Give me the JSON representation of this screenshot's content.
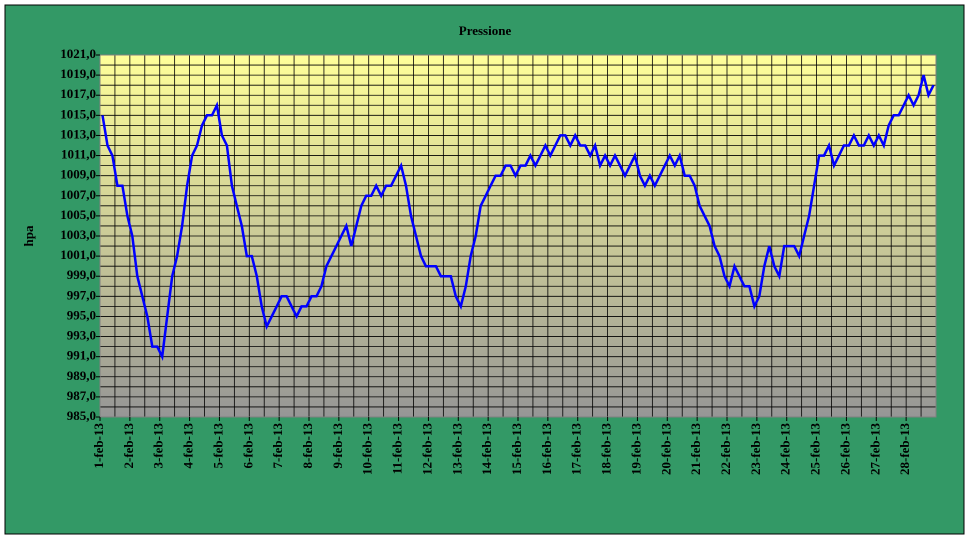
{
  "chart_data": {
    "type": "line",
    "title": "Pressione",
    "y_label": "hpa",
    "categories": [
      "1-feb-13",
      null,
      null,
      null,
      null,
      null,
      "2-feb-13",
      null,
      null,
      null,
      null,
      null,
      "3-feb-13",
      null,
      null,
      null,
      null,
      null,
      "4-feb-13",
      null,
      null,
      null,
      null,
      null,
      "5-feb-13",
      null,
      null,
      null,
      null,
      null,
      "6-feb-13",
      null,
      null,
      null,
      null,
      null,
      "7-feb-13",
      null,
      null,
      null,
      null,
      null,
      "8-feb-13",
      null,
      null,
      null,
      null,
      null,
      "9-feb-13",
      null,
      null,
      null,
      null,
      null,
      "10-feb-13",
      null,
      null,
      null,
      null,
      null,
      "11-feb-13",
      null,
      null,
      null,
      null,
      null,
      "12-feb-13",
      null,
      null,
      null,
      null,
      null,
      "13-feb-13",
      null,
      null,
      null,
      null,
      null,
      "14-feb-13",
      null,
      null,
      null,
      null,
      null,
      "15-feb-13",
      null,
      null,
      null,
      null,
      null,
      "16-feb-13",
      null,
      null,
      null,
      null,
      null,
      "17-feb-13",
      null,
      null,
      null,
      null,
      null,
      "18-feb-13",
      null,
      null,
      null,
      null,
      null,
      "19-feb-13",
      null,
      null,
      null,
      null,
      null,
      "20-feb-13",
      null,
      null,
      null,
      null,
      null,
      "21-feb-13",
      null,
      null,
      null,
      null,
      null,
      "22-feb-13",
      null,
      null,
      null,
      null,
      null,
      "23-feb-13",
      null,
      null,
      null,
      null,
      null,
      "24-feb-13",
      null,
      null,
      null,
      null,
      null,
      "25-feb-13",
      null,
      null,
      null,
      null,
      null,
      "26-feb-13",
      null,
      null,
      null,
      null,
      null,
      "27-feb-13",
      null,
      null,
      null,
      null,
      null,
      "28-feb-13",
      null,
      null,
      null,
      null,
      null
    ],
    "series": [
      {
        "name": "Pressione",
        "color": "#0000ff",
        "values": [
          1015,
          1012,
          1011,
          1008,
          1008,
          1005,
          1003,
          999,
          997,
          995,
          992,
          992,
          991,
          995,
          999,
          1001,
          1004,
          1008,
          1011,
          1012,
          1014,
          1015,
          1015,
          1016,
          1013,
          1012,
          1008,
          1006,
          1004,
          1001,
          1001,
          999,
          996,
          994,
          995,
          996,
          997,
          997,
          996,
          995,
          996,
          996,
          997,
          997,
          998,
          1000,
          1001,
          1002,
          1003,
          1004,
          1002,
          1004,
          1006,
          1007,
          1007,
          1008,
          1007,
          1008,
          1008,
          1009,
          1010,
          1008,
          1005,
          1003,
          1001,
          1000,
          1000,
          1000,
          999,
          999,
          999,
          997,
          996,
          998,
          1001,
          1003,
          1006,
          1007,
          1008,
          1009,
          1009,
          1010,
          1010,
          1009,
          1010,
          1010,
          1011,
          1010,
          1011,
          1012,
          1011,
          1012,
          1013,
          1013,
          1012,
          1013,
          1012,
          1012,
          1011,
          1012,
          1010,
          1011,
          1010,
          1011,
          1010,
          1009,
          1010,
          1011,
          1009,
          1008,
          1009,
          1008,
          1009,
          1010,
          1011,
          1010,
          1011,
          1009,
          1009,
          1008,
          1006,
          1005,
          1004,
          1002,
          1001,
          999,
          998,
          1000,
          999,
          998,
          998,
          996,
          997,
          1000,
          1002,
          1000,
          999,
          1002,
          1002,
          1002,
          1001,
          1003,
          1005,
          1008,
          1011,
          1011,
          1012,
          1010,
          1011,
          1012,
          1012,
          1013,
          1012,
          1012,
          1013,
          1012,
          1013,
          1012,
          1014,
          1015,
          1015,
          1016,
          1017,
          1016,
          1017,
          1019,
          1017,
          1018
        ]
      }
    ],
    "ylim": [
      985,
      1021
    ],
    "yticks": [
      {
        "value": 985,
        "label": "985,0"
      },
      {
        "value": 987,
        "label": "987,0"
      },
      {
        "value": 989,
        "label": "989,0"
      },
      {
        "value": 991,
        "label": "991,0"
      },
      {
        "value": 993,
        "label": "993,0"
      },
      {
        "value": 995,
        "label": "995,0"
      },
      {
        "value": 997,
        "label": "997,0"
      },
      {
        "value": 999,
        "label": "999,0"
      },
      {
        "value": 1001,
        "label": "1001,0"
      },
      {
        "value": 1003,
        "label": "1003,0"
      },
      {
        "value": 1005,
        "label": "1005,0"
      },
      {
        "value": 1007,
        "label": "1007,0"
      },
      {
        "value": 1009,
        "label": "1009,0"
      },
      {
        "value": 1011,
        "label": "1011,0"
      },
      {
        "value": 1013,
        "label": "1013,0"
      },
      {
        "value": 1015,
        "label": "1015,0"
      },
      {
        "value": 1017,
        "label": "1017,0"
      },
      {
        "value": 1019,
        "label": "1019,0"
      },
      {
        "value": 1021,
        "label": "1021,0"
      }
    ],
    "grid": true
  }
}
